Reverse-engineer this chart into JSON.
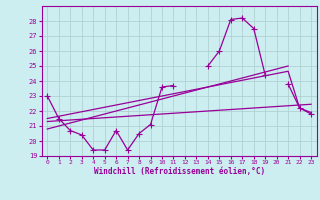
{
  "xlabel": "Windchill (Refroidissement éolien,°C)",
  "bg_color": "#cceef0",
  "line_color": "#990099",
  "grid_color": "#aacccc",
  "x_values": [
    0,
    1,
    2,
    3,
    4,
    5,
    6,
    7,
    8,
    9,
    10,
    11,
    12,
    13,
    14,
    15,
    16,
    17,
    18,
    19,
    20,
    21,
    22,
    23
  ],
  "line_main": [
    23.0,
    21.5,
    20.7,
    20.4,
    19.4,
    19.4,
    20.7,
    19.4,
    20.5,
    21.1,
    23.6,
    23.7,
    null,
    null,
    25.0,
    26.0,
    28.1,
    28.2,
    27.5,
    24.4,
    null,
    23.8,
    22.2,
    21.8
  ],
  "line_trend_low": [
    21.3,
    21.35,
    21.4,
    21.45,
    21.5,
    21.55,
    21.6,
    21.65,
    21.7,
    21.75,
    21.8,
    21.85,
    21.9,
    21.95,
    22.0,
    22.05,
    22.1,
    22.15,
    22.2,
    22.25,
    22.3,
    22.35,
    22.4,
    22.45
  ],
  "line_trend_mid": [
    20.8,
    21.0,
    21.2,
    21.4,
    21.6,
    21.8,
    22.0,
    22.2,
    22.4,
    22.6,
    22.8,
    23.0,
    23.2,
    23.4,
    23.6,
    23.8,
    24.0,
    24.2,
    24.4,
    24.6,
    24.8,
    25.0,
    null,
    null
  ],
  "line_trend_high": [
    21.5,
    21.65,
    21.8,
    21.95,
    22.1,
    22.25,
    22.4,
    22.55,
    22.7,
    22.85,
    23.0,
    23.15,
    23.3,
    23.45,
    23.6,
    23.75,
    23.9,
    24.05,
    24.2,
    24.35,
    24.5,
    24.65,
    22.2,
    21.9
  ],
  "ylim": [
    19,
    29
  ],
  "xlim": [
    -0.5,
    23.5
  ],
  "yticks": [
    19,
    20,
    21,
    22,
    23,
    24,
    25,
    26,
    27,
    28
  ],
  "xticks": [
    0,
    1,
    2,
    3,
    4,
    5,
    6,
    7,
    8,
    9,
    10,
    11,
    12,
    13,
    14,
    15,
    16,
    17,
    18,
    19,
    20,
    21,
    22,
    23
  ]
}
